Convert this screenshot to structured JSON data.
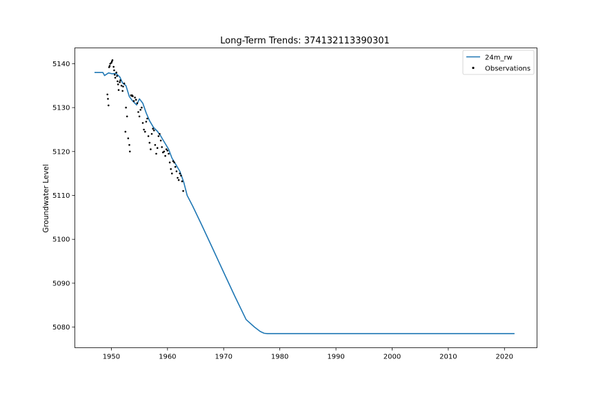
{
  "chart_data": {
    "type": "line",
    "title": "Long-Term Trends: 374132113390301",
    "xlabel": "",
    "ylabel": "Groundwater Level",
    "xlim": [
      1943.5,
      2025.8
    ],
    "ylim": [
      5075.3,
      5143.6
    ],
    "xticks": [
      1950,
      1960,
      1970,
      1980,
      1990,
      2000,
      2010,
      2020
    ],
    "yticks": [
      5080,
      5090,
      5100,
      5110,
      5120,
      5130,
      5140
    ],
    "grid": false,
    "legend_position": "top-right",
    "series": [
      {
        "name": "24m_rw",
        "kind": "line",
        "color": "#1f77b4",
        "x": [
          1947.0,
          1948.5,
          1948.8,
          1949.5,
          1950.2,
          1950.8,
          1951.5,
          1952.0,
          1952.6,
          1953.2,
          1953.8,
          1954.5,
          1955.0,
          1955.6,
          1956.2,
          1956.8,
          1957.5,
          1958.2,
          1958.8,
          1959.5,
          1960.2,
          1960.8,
          1961.5,
          1962.2,
          1962.9,
          1963.5,
          1964.5,
          1966.0,
          1968.0,
          1970.0,
          1972.0,
          1974.0,
          1975.5,
          1976.5,
          1977.2,
          1977.8,
          1978.5,
          1980.0,
          1990.0,
          2000.0,
          2010.0,
          2021.8
        ],
        "y": [
          5138.0,
          5138.0,
          5137.3,
          5137.9,
          5137.7,
          5137.8,
          5137.0,
          5135.6,
          5135.0,
          5132.5,
          5131.5,
          5130.6,
          5132.0,
          5131.0,
          5128.8,
          5127.0,
          5125.5,
          5124.6,
          5123.5,
          5122.0,
          5120.5,
          5118.5,
          5117.0,
          5115.5,
          5113.0,
          5110.0,
          5107.5,
          5103.5,
          5098.0,
          5092.5,
          5087.0,
          5081.7,
          5080.0,
          5079.0,
          5078.6,
          5078.5,
          5078.5,
          5078.5,
          5078.5,
          5078.5,
          5078.5,
          5078.5
        ]
      },
      {
        "name": "Observations",
        "kind": "scatter",
        "color": "#000000",
        "x": [
          1949.3,
          1949.4,
          1949.5,
          1949.6,
          1949.7,
          1949.8,
          1950.0,
          1950.1,
          1950.2,
          1950.4,
          1950.5,
          1950.6,
          1950.7,
          1950.9,
          1951.0,
          1951.1,
          1951.2,
          1951.3,
          1951.5,
          1951.6,
          1951.8,
          1952.0,
          1952.1,
          1952.3,
          1952.5,
          1952.6,
          1952.8,
          1953.0,
          1953.2,
          1953.3,
          1953.5,
          1953.6,
          1953.7,
          1953.8,
          1954.0,
          1954.2,
          1954.4,
          1954.6,
          1954.8,
          1955.0,
          1955.2,
          1955.4,
          1955.6,
          1955.8,
          1956.0,
          1956.2,
          1956.4,
          1956.6,
          1956.8,
          1957.0,
          1957.2,
          1957.4,
          1957.6,
          1957.8,
          1958.0,
          1958.2,
          1958.4,
          1958.6,
          1958.8,
          1959.0,
          1959.2,
          1959.4,
          1959.6,
          1959.8,
          1960.0,
          1960.2,
          1960.4,
          1960.6,
          1960.8,
          1961.0,
          1961.2,
          1961.4,
          1961.6,
          1961.8,
          1962.0,
          1962.2,
          1962.4,
          1962.6,
          1962.8
        ],
        "y": [
          5133.0,
          5132.0,
          5130.5,
          5139.2,
          5139.5,
          5140.0,
          5140.2,
          5140.5,
          5140.8,
          5139.3,
          5138.5,
          5137.5,
          5136.8,
          5138.0,
          5137.2,
          5136.0,
          5135.3,
          5134.0,
          5135.8,
          5136.2,
          5135.0,
          5133.8,
          5134.8,
          5135.5,
          5124.5,
          5130.0,
          5128.0,
          5123.0,
          5121.5,
          5120.0,
          5132.8,
          5132.7,
          5132.8,
          5132.6,
          5131.5,
          5132.3,
          5131.8,
          5131.0,
          5129.0,
          5128.0,
          5129.5,
          5130.0,
          5126.5,
          5125.0,
          5124.5,
          5126.8,
          5127.5,
          5123.5,
          5122.0,
          5120.5,
          5124.0,
          5125.2,
          5124.8,
          5121.5,
          5119.5,
          5120.8,
          5123.5,
          5124.0,
          5122.5,
          5121.0,
          5119.8,
          5120.0,
          5119.0,
          5120.5,
          5120.2,
          5119.5,
          5117.5,
          5116.0,
          5115.0,
          5117.8,
          5117.5,
          5116.5,
          5115.5,
          5114.0,
          5113.5,
          5115.0,
          5114.5,
          5113.2,
          5111.0
        ]
      }
    ]
  }
}
